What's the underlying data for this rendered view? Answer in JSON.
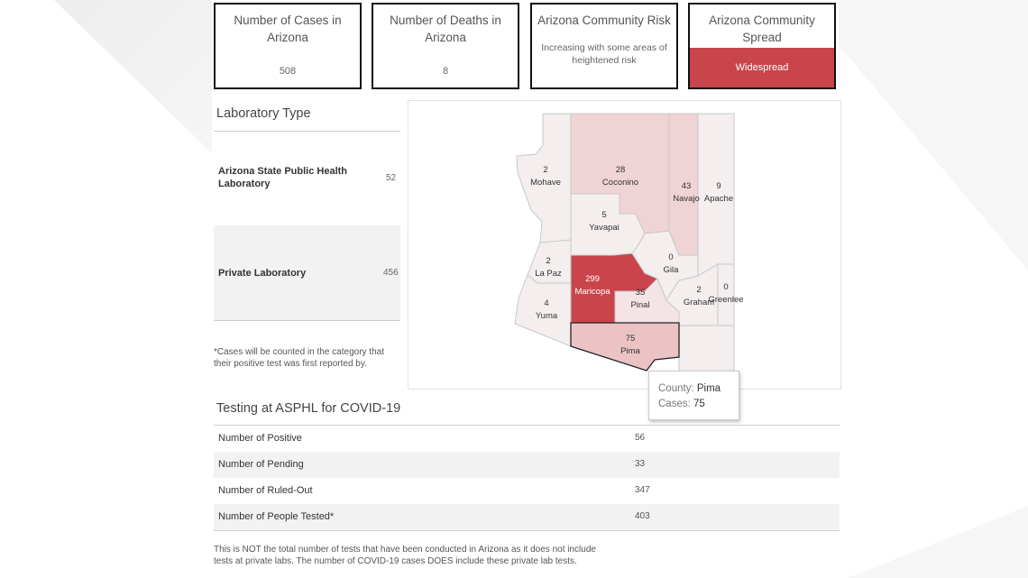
{
  "kpis": {
    "cases": {
      "title_line1": "Number of Cases in",
      "title_line2": "Arizona",
      "value": "508"
    },
    "deaths": {
      "title_line1": "Number of Deaths in",
      "title_line2": "Arizona",
      "value": "8"
    },
    "risk": {
      "title": "Arizona Community Risk",
      "desc_line1": "Increasing with some areas of",
      "desc_line2": "heightened risk"
    },
    "spread": {
      "title_line1": "Arizona Community",
      "title_line2": "Spread",
      "value": "Widespread"
    }
  },
  "lab": {
    "title": "Laboratory Type",
    "rows": [
      {
        "label_line1": "Arizona State Public Health",
        "label_line2": "Laboratory",
        "value": "52"
      },
      {
        "label_line1": "Private Laboratory",
        "label_line2": "",
        "value": "456"
      }
    ],
    "note_line1": "*Cases will be counted in the category that",
    "note_line2": "their positive test was first reported by."
  },
  "map": {
    "counties": [
      {
        "name": "Mohave",
        "cases": "2"
      },
      {
        "name": "Coconino",
        "cases": "28"
      },
      {
        "name": "Navajo",
        "cases": "43"
      },
      {
        "name": "Apache",
        "cases": "9"
      },
      {
        "name": "Yavapai",
        "cases": "5"
      },
      {
        "name": "La Paz",
        "cases": "2"
      },
      {
        "name": "Maricopa",
        "cases": "299"
      },
      {
        "name": "Gila",
        "cases": "0"
      },
      {
        "name": "Pinal",
        "cases": "35"
      },
      {
        "name": "Graham",
        "cases": "2"
      },
      {
        "name": "Greenlee",
        "cases": "0"
      },
      {
        "name": "Yuma",
        "cases": "4"
      },
      {
        "name": "Pima",
        "cases": "75"
      }
    ],
    "colors": {
      "low": "#f4eeee",
      "mid": "#f0d3d5",
      "pima": "#ebc3c5",
      "maricopa": "#c9454b",
      "border": "#c8c8c8"
    }
  },
  "tooltip": {
    "county_label": "County:",
    "county_value": "Pima",
    "cases_label": "Cases:",
    "cases_value": "75"
  },
  "testing": {
    "title": "Testing at ASPHL for COVID-19",
    "rows": [
      {
        "label": "Number of Positive",
        "value": "56"
      },
      {
        "label": "Number of Pending",
        "value": "33"
      },
      {
        "label": "Number of Ruled-Out",
        "value": "347"
      },
      {
        "label": "Number of People Tested*",
        "value": "403"
      }
    ],
    "footnote_line1": "This is NOT the total number of tests that have been conducted in Arizona as it does not include",
    "footnote_line2": "tests at private labs. The number of COVID-19 cases DOES include these private lab tests."
  }
}
